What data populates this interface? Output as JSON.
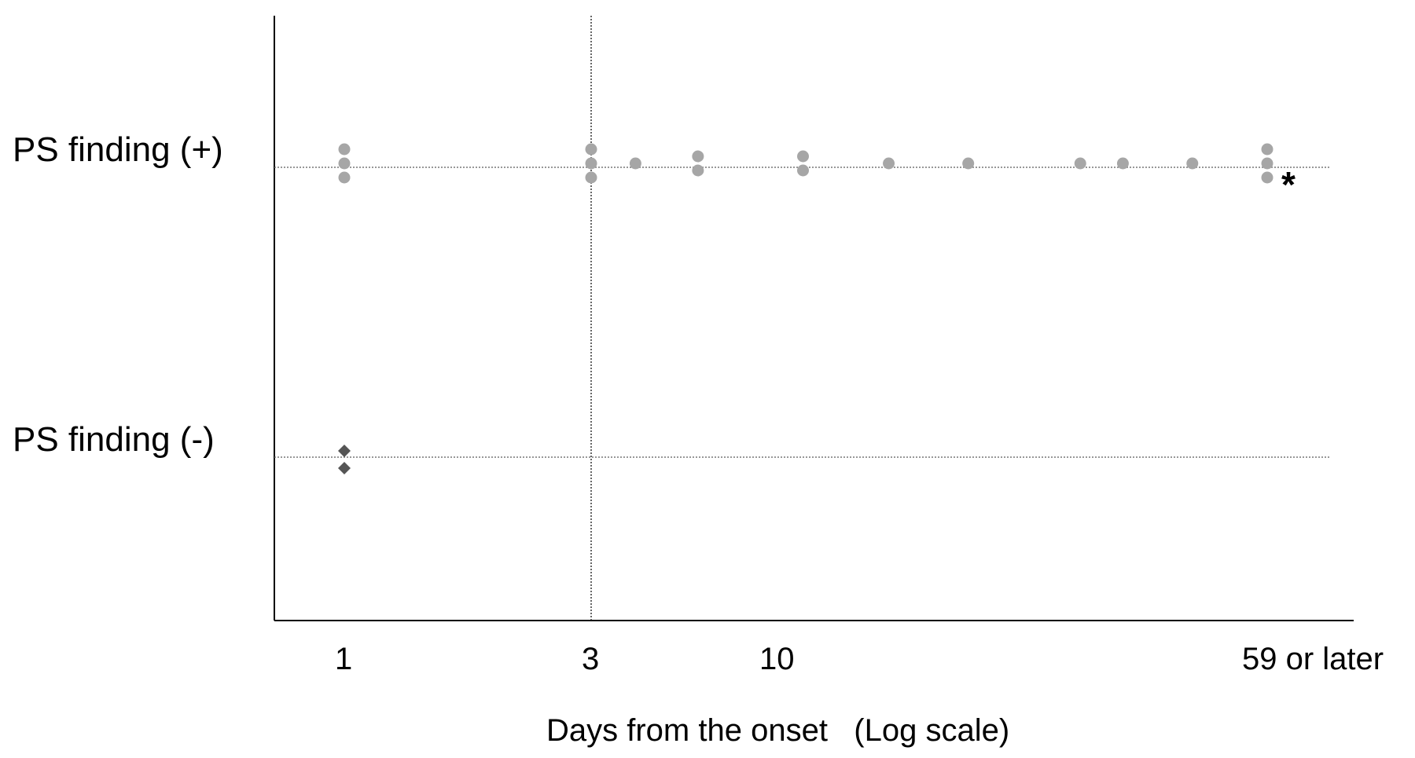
{
  "chart_data": {
    "type": "scatter",
    "xlabel": "Days from the onset   (Log scale)",
    "x_scale": "log",
    "x_ticks": [
      {
        "value": 1,
        "label": "1"
      },
      {
        "value": 3,
        "label": "3"
      },
      {
        "value": 10,
        "label": "10"
      },
      {
        "value": 59,
        "label": "59 or later"
      }
    ],
    "reference_line_x": 3,
    "categories": [
      "PS finding (+)",
      "PS finding (-)"
    ],
    "series": [
      {
        "category": "PS finding (+)",
        "marker": "circle",
        "color": "#a6a6a6",
        "points": [
          {
            "x": 1,
            "count": 3
          },
          {
            "x": 3,
            "count": 3
          },
          {
            "x": 4,
            "count": 1
          },
          {
            "x": 6,
            "count": 2
          },
          {
            "x": 11,
            "count": 2
          },
          {
            "x": 15,
            "count": 1
          },
          {
            "x": 20,
            "count": 1
          },
          {
            "x": 30,
            "count": 1
          },
          {
            "x": 35,
            "count": 1
          },
          {
            "x": 45,
            "count": 1
          },
          {
            "x": 59,
            "count": 3
          }
        ]
      },
      {
        "category": "PS finding (-)",
        "marker": "diamond",
        "color": "#555555",
        "points": [
          {
            "x": 1,
            "count": 2
          }
        ]
      }
    ],
    "annotation": "*",
    "grid": false
  }
}
